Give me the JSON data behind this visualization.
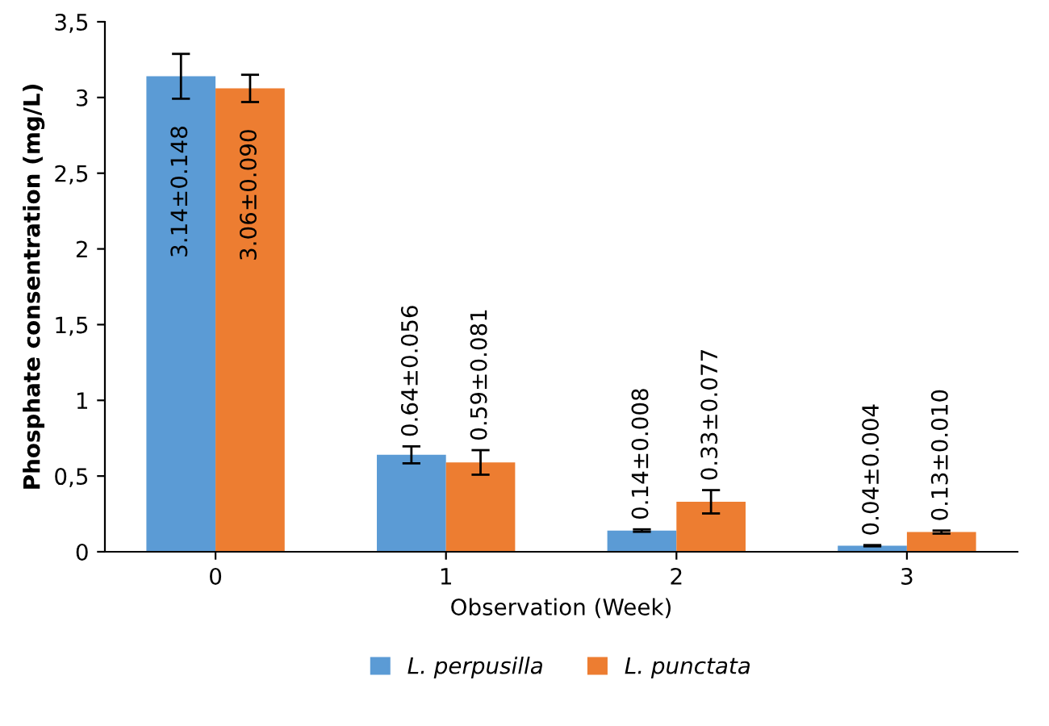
{
  "chart_data": {
    "type": "bar",
    "xlabel": "Observation (Week)",
    "ylabel": "Phosphate consentration (mg/L)",
    "categories": [
      "0",
      "1",
      "2",
      "3"
    ],
    "series": [
      {
        "name": "L. perpusilla",
        "color": "#5b9bd5",
        "values": [
          3.14,
          0.64,
          0.14,
          0.04
        ],
        "errors": [
          0.148,
          0.056,
          0.008,
          0.004
        ],
        "value_labels": [
          "3.14±0.148",
          "0.64±0.056",
          "0.14±0.008",
          "0.04±0.004"
        ]
      },
      {
        "name": "L. punctata",
        "color": "#ed7d31",
        "values": [
          3.06,
          0.59,
          0.33,
          0.13
        ],
        "errors": [
          0.09,
          0.081,
          0.077,
          0.01
        ],
        "value_labels": [
          "3.06±0.090",
          "0.59±0.081",
          "0.33±0.077",
          "0.13±0.010"
        ]
      }
    ],
    "ylim": [
      0,
      3.5
    ],
    "yticks": [
      0,
      {
        "value": 0.5,
        "label": "0,5"
      },
      1,
      {
        "value": 1.5,
        "label": "1,5"
      },
      2,
      {
        "value": 2.5,
        "label": "2,5"
      },
      3,
      {
        "value": 3.5,
        "label": "3,5"
      }
    ],
    "grid": false,
    "legend": "bottom"
  }
}
